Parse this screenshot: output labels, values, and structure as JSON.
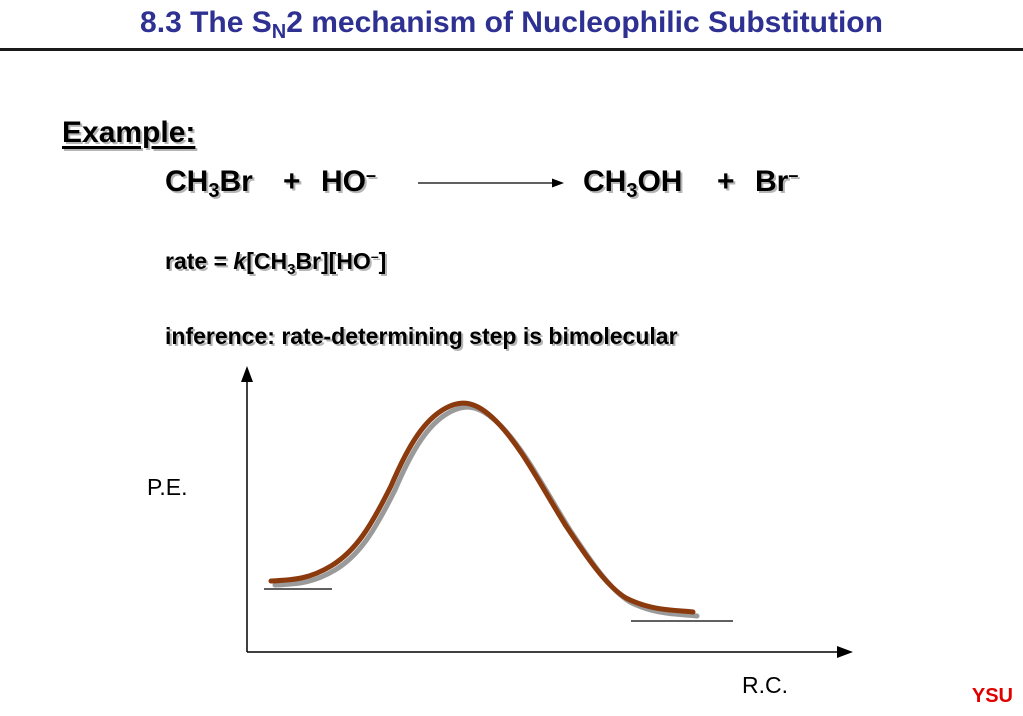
{
  "slide": {
    "title": {
      "prefix": "8.3 The S",
      "subscript": "N",
      "suffix": "2 mechanism of Nucleophilic Substitution"
    },
    "example_label": "Example:",
    "equation": {
      "reactant1": {
        "a": "CH",
        "sub": "3",
        "b": "Br"
      },
      "plus1": "+",
      "reactant2": {
        "a": "HO",
        "sup": "–"
      },
      "product1": {
        "a": "CH",
        "sub": "3",
        "b": "OH"
      },
      "plus2": "+",
      "product2": {
        "a": "Br",
        "sup": "–"
      }
    },
    "rate_law": {
      "prefix": "rate = ",
      "k": "k",
      "a": "[CH",
      "sub": "3",
      "b": "Br][HO",
      "sup": "–",
      "c": "]"
    },
    "inference": "inference:  rate-determining step is bimolecular",
    "diagram": {
      "y_axis_label": "P.E.",
      "x_axis_label": "R.C.",
      "curve_color": "#8b3a0e",
      "shadow_color": "#9a9a9a"
    },
    "footer": {
      "logo": "YSU",
      "logo_color": "#e00000"
    }
  }
}
